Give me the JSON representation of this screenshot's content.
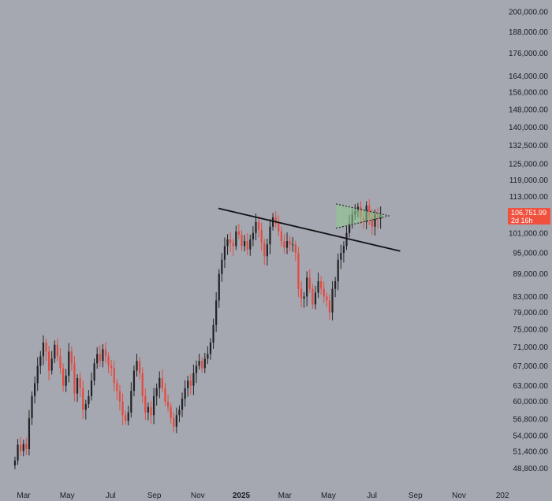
{
  "chart_data": {
    "type": "candlestick",
    "y_scale": "log",
    "ylim": [
      47000,
      205000
    ],
    "y_ticks": [
      "200,000.00",
      "188,000.00",
      "176,000.00",
      "164,000.00",
      "156,000.00",
      "148,000.00",
      "140,000.00",
      "132,500.00",
      "125,000.00",
      "119,000.00",
      "113,000.00",
      "101,000.00",
      "95,000.00",
      "89,000.00",
      "83,000.00",
      "79,000.00",
      "75,000.00",
      "71,000.00",
      "67,000.00",
      "63,000.00",
      "60,000.00",
      "56,800.00",
      "54,000.00",
      "51,400.00",
      "48,800.00"
    ],
    "x_ticks": [
      {
        "label": "Mar",
        "month": 3,
        "bold": false
      },
      {
        "label": "May",
        "month": 5,
        "bold": false
      },
      {
        "label": "Jul",
        "month": 7,
        "bold": false
      },
      {
        "label": "Sep",
        "month": 9,
        "bold": false
      },
      {
        "label": "Nov",
        "month": 11,
        "bold": false
      },
      {
        "label": "2025",
        "month": 13,
        "bold": true
      },
      {
        "label": "Mar",
        "month": 15,
        "bold": false
      },
      {
        "label": "May",
        "month": 17,
        "bold": false
      },
      {
        "label": "Jul",
        "month": 19,
        "bold": false
      },
      {
        "label": "Sep",
        "month": 21,
        "bold": false
      },
      {
        "label": "Nov",
        "month": 23,
        "bold": false
      },
      {
        "label": "202",
        "month": 25,
        "bold": false
      }
    ],
    "current_price": {
      "value": "106,751.99",
      "countdown": "2d 16h",
      "price": 106752
    },
    "closes": [
      50000,
      52500,
      51500,
      52600,
      51800,
      57000,
      61000,
      63500,
      67000,
      69000,
      72000,
      70000,
      66000,
      68500,
      71500,
      69000,
      66500,
      63000,
      65000,
      70000,
      67500,
      61500,
      64500,
      62500,
      58500,
      59500,
      61000,
      64000,
      67500,
      69500,
      68000,
      70500,
      69000,
      67000,
      66500,
      63500,
      62000,
      60000,
      57500,
      56500,
      58000,
      62000,
      66000,
      68000,
      65500,
      61000,
      58000,
      59000,
      57500,
      61000,
      62500,
      64500,
      62500,
      60000,
      59000,
      57000,
      55500,
      57500,
      58500,
      60500,
      62500,
      64000,
      63000,
      65500,
      67000,
      68000,
      66500,
      68500,
      69500,
      72000,
      76000,
      82000,
      89000,
      93000,
      97000,
      99000,
      98000,
      97000,
      101500,
      100500,
      97000,
      98500,
      96000,
      99000,
      101000,
      104500,
      102000,
      98000,
      94000,
      97500,
      103000,
      106000,
      104000,
      101500,
      98500,
      96500,
      98500,
      97500,
      97500,
      95000,
      85000,
      82500,
      83000,
      88000,
      85000,
      81000,
      84000,
      87000,
      85000,
      83000,
      82000,
      79000,
      85000,
      87000,
      93000,
      95000,
      97000,
      101000,
      104000,
      107000,
      108000,
      109500,
      106000,
      104500,
      110000,
      106000,
      103000,
      107000,
      105500,
      106752
    ],
    "trendlines": [
      {
        "name": "descending-resistance",
        "start": [
          11.95,
          109000
        ],
        "end": [
          20.3,
          95500
        ]
      }
    ],
    "pattern": {
      "name": "symmetrical-triangle",
      "upper_start": [
        17.35,
        110500
      ],
      "upper_end": [
        19.8,
        106500
      ],
      "lower_start": [
        17.35,
        102500
      ],
      "lower_end": [
        19.8,
        106500
      ]
    }
  }
}
